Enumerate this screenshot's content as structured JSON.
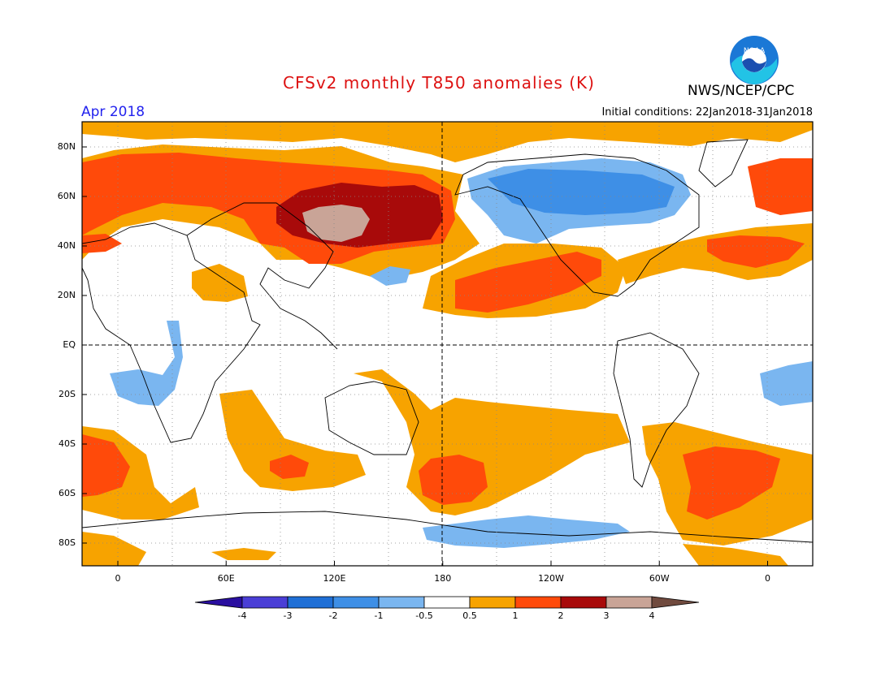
{
  "header": {
    "title": "CFSv2 monthly T850 anomalies (K)",
    "agency": "NWS/NCEP/CPC",
    "month": "Apr 2018",
    "initial_conditions": "Initial conditions: 22Jan2018-31Jan2018",
    "logo_text": "NOAA"
  },
  "axes": {
    "lat_labels": [
      "80N",
      "60N",
      "40N",
      "20N",
      "EQ",
      "20S",
      "40S",
      "60S",
      "80S"
    ],
    "lat_values": [
      80,
      60,
      40,
      20,
      0,
      -20,
      -40,
      -60,
      -80
    ],
    "lon_labels": [
      "0",
      "60E",
      "120E",
      "180",
      "120W",
      "60W",
      "0"
    ],
    "lon_values": [
      0,
      60,
      120,
      180,
      240,
      300,
      360
    ]
  },
  "colorbar": {
    "labels": [
      "-4",
      "-3",
      "-2",
      "-1",
      "-0.5",
      "0.5",
      "1",
      "2",
      "3",
      "4"
    ],
    "colors": [
      "#2a0fa0",
      "#4a3ed6",
      "#1f6fd6",
      "#3e8fe6",
      "#7ab6f0",
      "#ffffff",
      "#f7a300",
      "#ff4a0a",
      "#a80a0a",
      "#c9a497",
      "#704a3e"
    ]
  },
  "colors": {
    "title": "#dd1111",
    "month": "#2222ee",
    "dashed_lines": "#000000"
  }
}
